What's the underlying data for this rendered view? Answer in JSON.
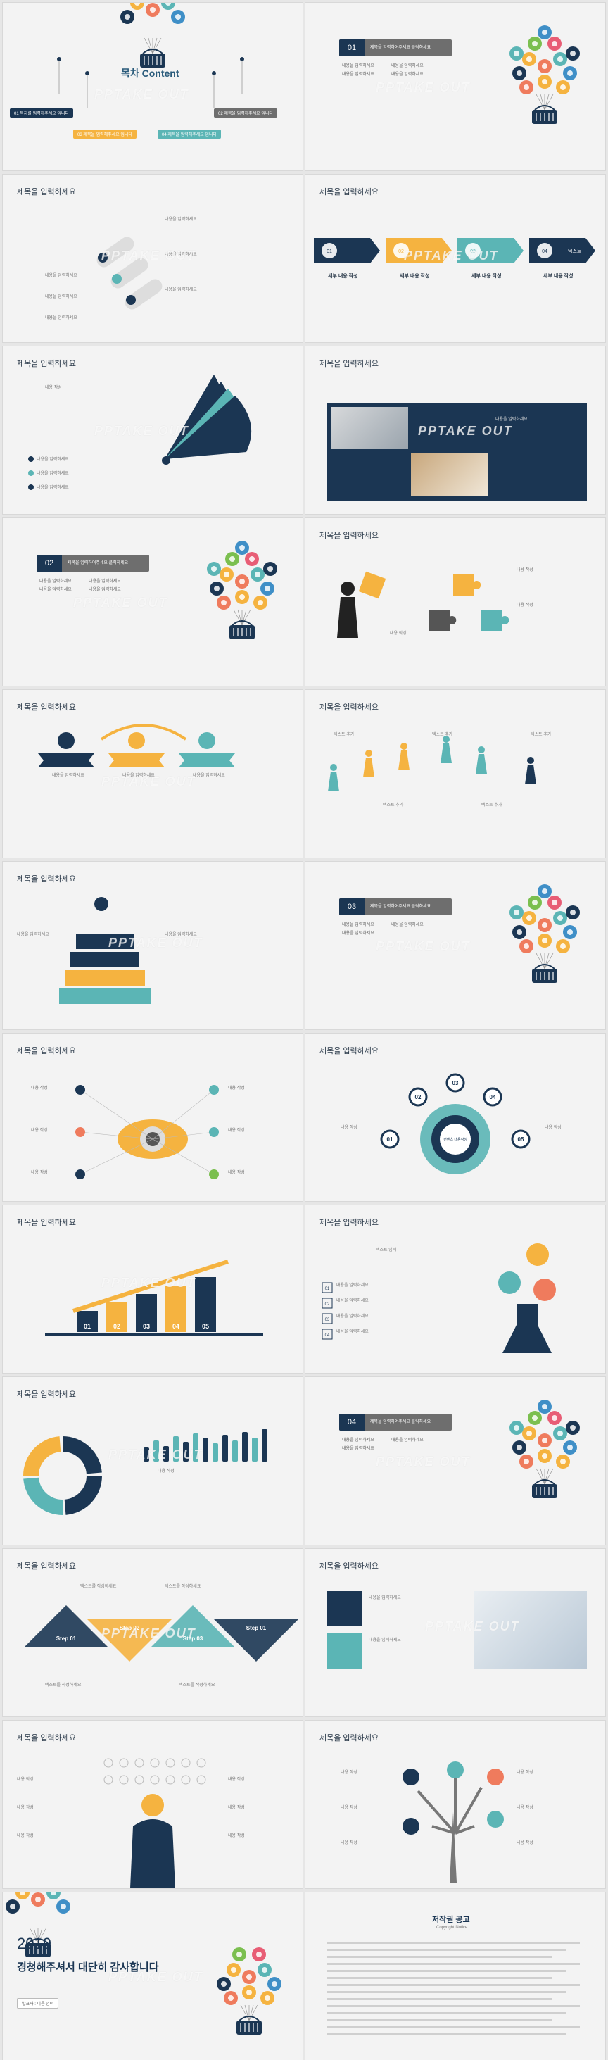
{
  "watermark": "PPTAKE OUT",
  "slides_title": "제목을 입력하세요",
  "toc": {
    "title": "목차 Content",
    "items": [
      "01 목차를 입력해주세요 입니다",
      "02 제목을 입력해주세요 입니다",
      "03 제목을 입력해주세요 입니다",
      "04 제목을 입력해주세요 입니다"
    ]
  },
  "sections": [
    {
      "num": "01",
      "label": "제목을 입력하여주세요 클릭하세요",
      "items": [
        "내용을 입력하세요",
        "내용을 입력하세요",
        "내용을 입력하세요",
        "내용을 입력하세요"
      ]
    },
    {
      "num": "02",
      "label": "제목을 입력하여주세요 클릭하세요",
      "items": [
        "내용을 입력하세요",
        "내용을 입력하세요",
        "내용을 입력하세요",
        "내용을 입력하세요"
      ]
    },
    {
      "num": "03",
      "label": "제목을 입력하여주세요 클릭하세요",
      "items": [
        "내용을 입력하세요",
        "내용을 입력하세요",
        "내용을 입력하세요"
      ]
    },
    {
      "num": "04",
      "label": "제목을 입력하여주세요 클릭하세요",
      "items": [
        "내용을 입력하세요",
        "내용을 입력하세요",
        "내용을 입력하세요"
      ]
    }
  ],
  "arrows": {
    "nums": [
      "01",
      "02",
      "03",
      "04"
    ],
    "last": "텍스트",
    "caption": "세부 내용 작성"
  },
  "steps": [
    "Step 01",
    "Step 02",
    "Step 03",
    "Step 01"
  ],
  "text_write": "텍스트를 작성하세요",
  "content_write": "내용 작성",
  "content_input": "내용을 입력하세요",
  "text_input": "텍스트 입력",
  "add_text": "텍스트 추가",
  "step_nums": [
    "01",
    "02",
    "03",
    "04",
    "05"
  ],
  "cycle_nums": [
    "01",
    "02",
    "03",
    "04",
    "05"
  ],
  "cycle_center": "컨텐츠 내용작성",
  "closing": {
    "year": "2019",
    "title": "경청해주셔서 대단히 감사합니다",
    "subtitle": "발표자 : 이름 입력"
  },
  "copyright": {
    "title": "저작권 공고",
    "subtitle": "Copyright Notice"
  },
  "colors": {
    "navy": "#1b3653",
    "teal": "#5bb5b5",
    "orange": "#f5b340",
    "coral": "#ef7b5d"
  }
}
